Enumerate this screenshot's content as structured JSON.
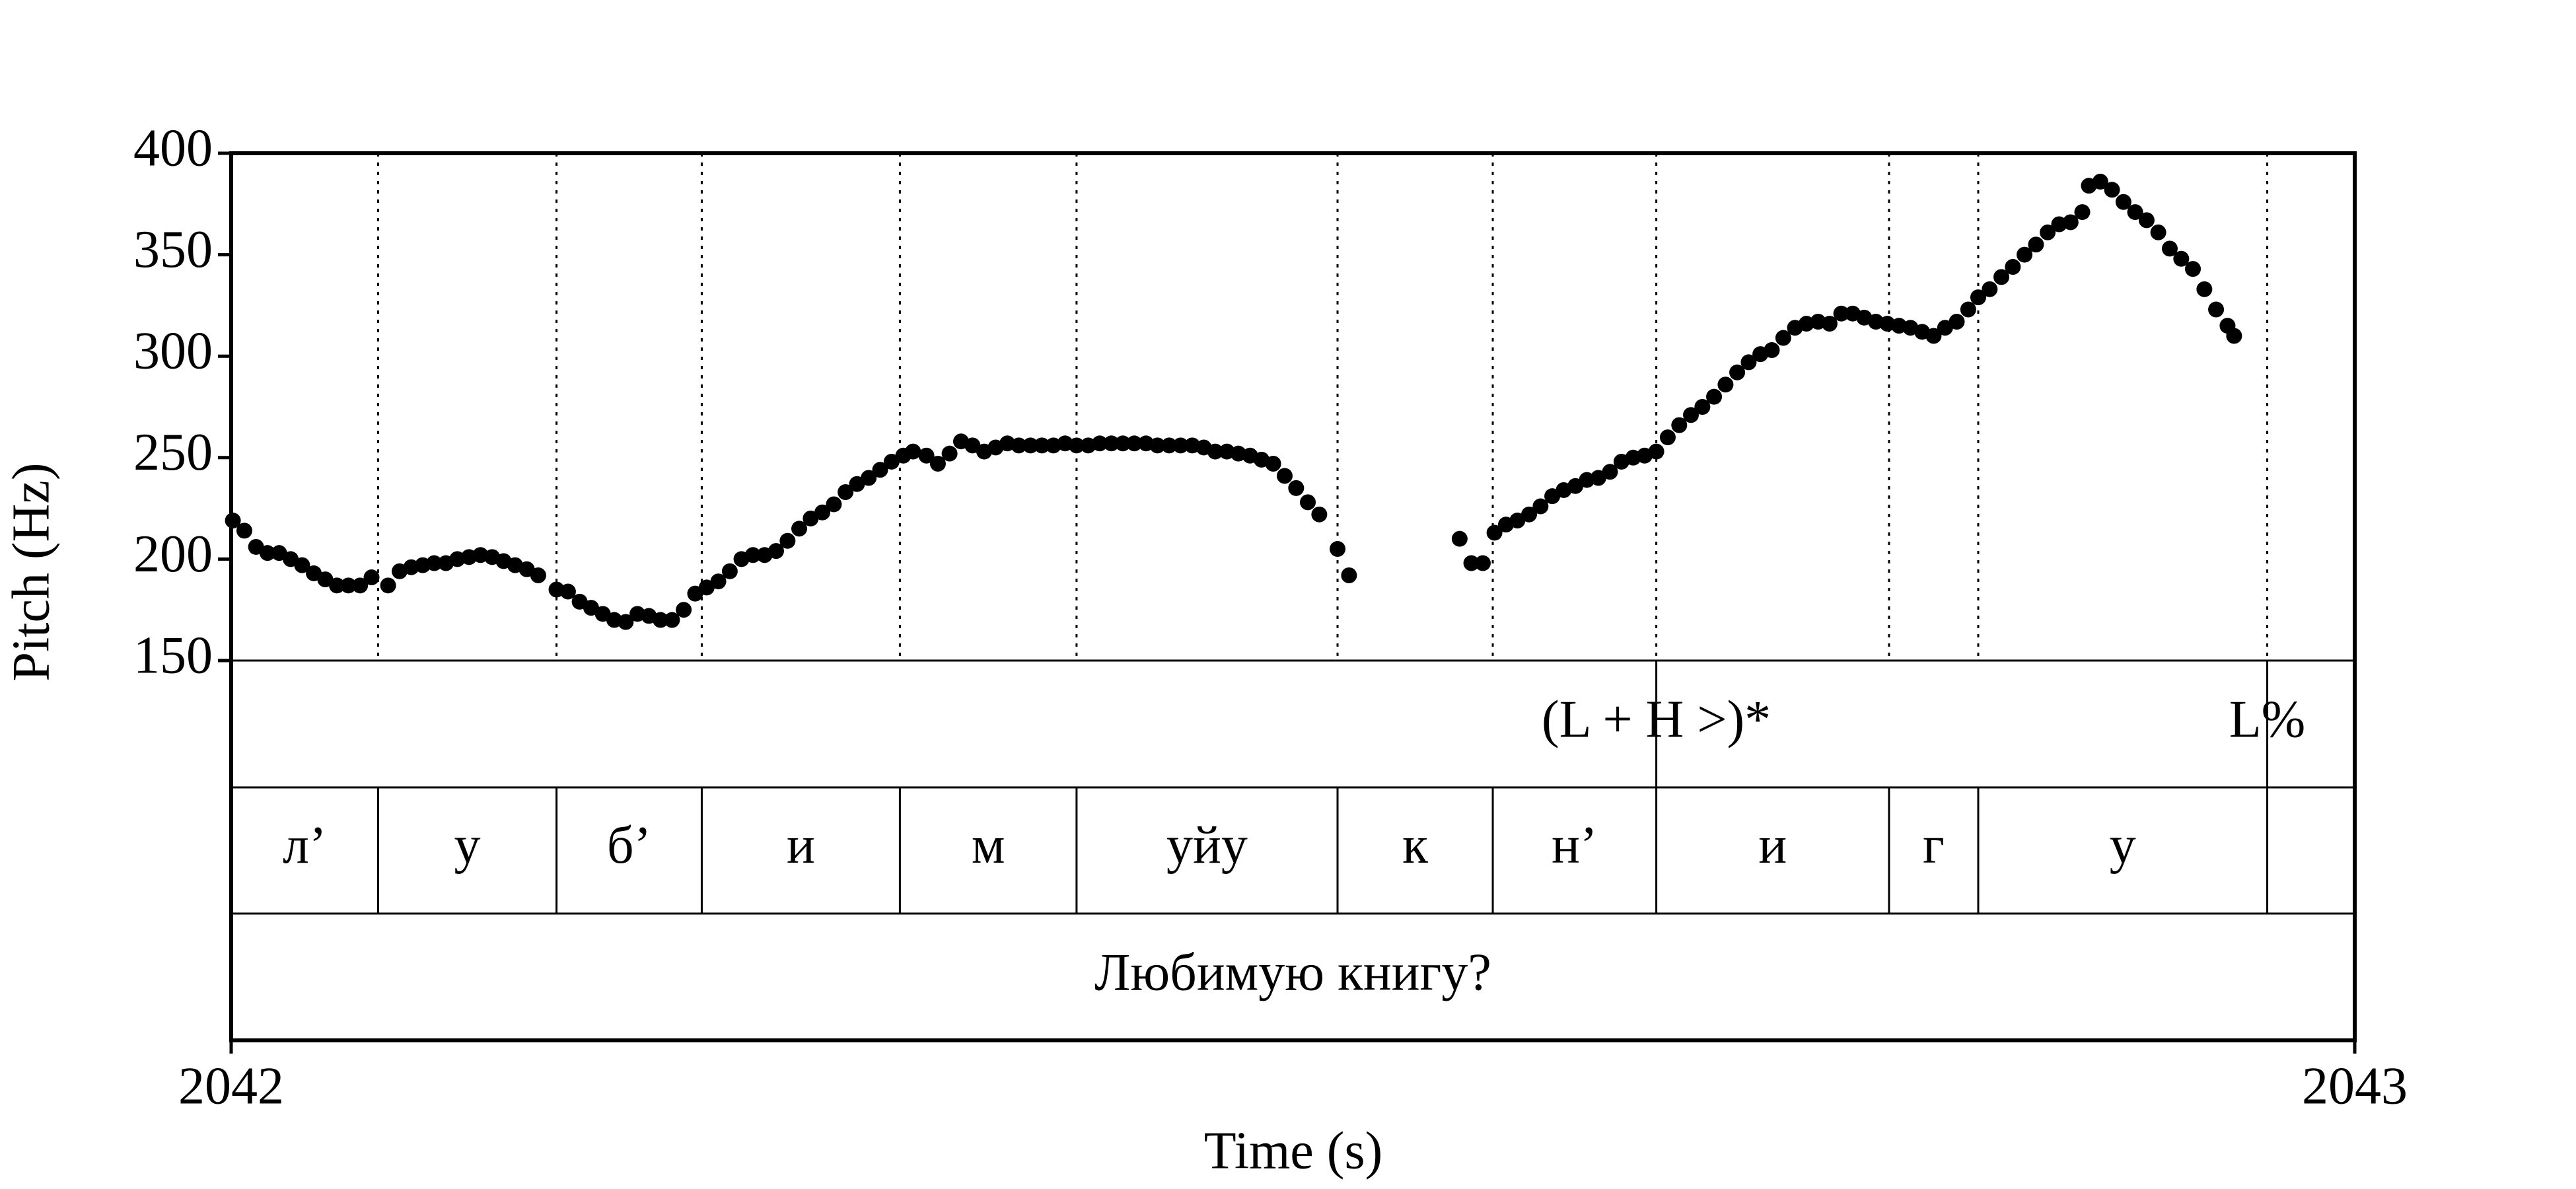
{
  "chart_data": {
    "type": "scatter",
    "x_label": "Time (s)",
    "y_label": "Pitch (Hz)",
    "xlim": [
      2042,
      2043
    ],
    "xticks": [
      2042,
      2043
    ],
    "ylim": [
      150,
      400
    ],
    "yticks": [
      150,
      200,
      250,
      300,
      350,
      400
    ],
    "x": [
      2042.0008,
      2042.0062,
      2042.0117,
      2042.0171,
      2042.0226,
      2042.028,
      2042.0334,
      2042.0389,
      2042.0443,
      2042.0498,
      2042.0552,
      2042.0607,
      2042.0661,
      2042.0739,
      2042.0793,
      2042.0848,
      2042.0902,
      2042.0956,
      2042.1011,
      2042.1065,
      2042.112,
      2042.1174,
      2042.1229,
      2042.1283,
      2042.1337,
      2042.1392,
      2042.1446,
      2042.1532,
      2042.1586,
      2042.1641,
      2042.1695,
      2042.175,
      2042.1804,
      2042.1858,
      2042.1913,
      2042.1967,
      2042.2022,
      2042.2076,
      2042.2131,
      2042.2185,
      2042.2239,
      2042.2294,
      2042.2348,
      2042.2403,
      2042.2457,
      2042.2512,
      2042.2566,
      2042.262,
      2042.2675,
      2042.2729,
      2042.2784,
      2042.2838,
      2042.2893,
      2042.2947,
      2042.3002,
      2042.3056,
      2042.311,
      2042.3165,
      2042.3211,
      2042.3274,
      2042.3328,
      2042.3383,
      2042.3437,
      2042.3491,
      2042.3546,
      2042.36,
      2042.3655,
      2042.3709,
      2042.3764,
      2042.3818,
      2042.3872,
      2042.3927,
      2042.3981,
      2042.4036,
      2042.409,
      2042.4145,
      2042.4199,
      2042.4253,
      2042.4308,
      2042.4362,
      2042.4417,
      2042.4471,
      2042.4526,
      2042.458,
      2042.4634,
      2042.4689,
      2042.4743,
      2042.4798,
      2042.4852,
      2042.4907,
      2042.4961,
      2042.5015,
      2042.507,
      2042.5124,
      2042.521,
      2042.5264,
      2042.5785,
      2042.584,
      2042.5894,
      2042.5949,
      2042.6003,
      2042.6057,
      2042.6112,
      2042.6166,
      2042.6221,
      2042.6275,
      2042.633,
      2042.6384,
      2042.6438,
      2042.6493,
      2042.6547,
      2042.6602,
      2042.6656,
      2042.6711,
      2042.6765,
      2042.6819,
      2042.6874,
      2042.6928,
      2042.6983,
      2042.7037,
      2042.7092,
      2042.7146,
      2042.7201,
      2042.7255,
      2042.7309,
      2042.7364,
      2042.7418,
      2042.7473,
      2042.7527,
      2042.7582,
      2042.7636,
      2042.769,
      2042.7745,
      2042.7799,
      2042.7854,
      2042.7908,
      2042.7963,
      2042.8017,
      2042.8071,
      2042.8126,
      2042.818,
      2042.8227,
      2042.8281,
      2042.8336,
      2042.839,
      2042.8445,
      2042.8499,
      2042.8554,
      2042.8608,
      2042.8662,
      2042.8717,
      2042.8748,
      2042.8802,
      2042.8857,
      2042.8911,
      2042.8966,
      2042.902,
      2042.9075,
      2042.9129,
      2042.9183,
      2042.9238,
      2042.9292,
      2042.9347,
      2042.9401,
      2042.9432
    ],
    "series": [
      {
        "color": "#000000",
        "values": [
          219,
          214,
          206,
          203,
          203,
          200,
          197,
          193,
          190,
          187,
          187,
          187,
          191,
          187,
          194,
          196,
          197,
          198,
          198,
          200,
          201,
          202,
          201,
          199,
          197,
          195,
          192,
          185,
          184,
          179,
          176,
          173,
          170,
          169,
          173,
          172,
          170,
          170,
          175,
          183,
          186,
          189,
          194,
          200,
          202,
          202,
          204,
          209,
          215,
          220,
          223,
          227,
          233,
          237,
          240,
          244,
          248,
          251,
          253,
          251,
          247,
          252,
          258,
          256,
          253,
          255,
          257,
          256,
          256,
          256,
          256,
          257,
          256,
          256,
          257,
          257,
          257,
          257,
          257,
          256,
          256,
          256,
          256,
          255,
          253,
          253,
          252,
          251,
          249,
          247,
          241,
          235,
          228,
          222,
          205,
          192,
          210,
          198,
          198,
          213,
          217,
          219,
          222,
          226,
          231,
          234,
          236,
          239,
          240,
          243,
          248,
          250,
          251,
          253,
          260,
          266,
          271,
          275,
          280,
          286,
          292,
          297,
          301,
          303,
          309,
          314,
          316,
          317,
          316,
          321,
          321,
          319,
          317,
          316,
          315,
          314,
          312,
          310,
          314,
          317,
          323,
          329,
          333,
          339,
          344,
          350,
          355,
          361,
          365,
          366,
          371,
          384,
          386,
          382,
          376,
          371,
          367,
          361,
          353,
          348,
          343,
          333,
          323,
          315,
          310
        ]
      }
    ],
    "tiers": [
      {
        "points": [
          2042.6711,
          2042.9588
        ],
        "labels": [
          "(L + H >)*",
          "L%"
        ]
      },
      {
        "boundaries": [
          2042.0692,
          2042.1532,
          2042.2216,
          2042.3149,
          2042.3981,
          2042.521,
          2042.5941,
          2042.6711,
          2042.7807,
          2042.8227,
          2042.9588
        ],
        "labels": [
          "л’",
          "у",
          "б’",
          "и",
          "м",
          "уйу",
          "к",
          "н’",
          "и",
          "г",
          "у",
          null
        ]
      },
      {
        "boundaries": [],
        "labels": [
          "Любимую книгу?"
        ]
      }
    ]
  }
}
